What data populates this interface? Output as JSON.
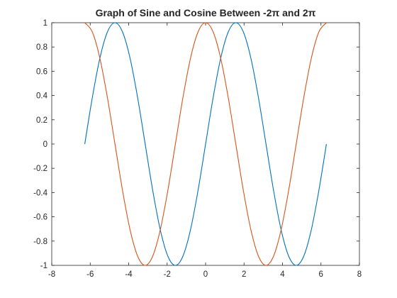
{
  "chart_data": {
    "type": "line",
    "title": "Graph of Sine and Cosine Between -2π and 2π",
    "xlabel": "",
    "ylabel": "",
    "xlim": [
      -8,
      8
    ],
    "ylim": [
      -1,
      1
    ],
    "xticks": [
      -8,
      -6,
      -4,
      -2,
      0,
      2,
      4,
      6,
      8
    ],
    "yticks": [
      -1,
      -0.8,
      -0.6,
      -0.4,
      -0.2,
      0,
      0.2,
      0.4,
      0.6,
      0.8,
      1
    ],
    "xtick_labels": [
      "-8",
      "-6",
      "-4",
      "-2",
      "0",
      "2",
      "4",
      "6",
      "8"
    ],
    "ytick_labels": [
      "-1",
      "-0.8",
      "-0.6",
      "-0.4",
      "-0.2",
      "0",
      "0.2",
      "0.4",
      "0.6",
      "0.8",
      "1"
    ],
    "grid": false,
    "legend": "none",
    "x": [
      -6.2832,
      -5.8905,
      -5.4978,
      -5.1051,
      -4.7124,
      -4.3197,
      -3.927,
      -3.5343,
      -3.1416,
      -2.7489,
      -2.3562,
      -1.9635,
      -1.5708,
      -1.1781,
      -0.7854,
      -0.3927,
      0,
      0.3927,
      0.7854,
      1.1781,
      1.5708,
      1.9635,
      2.3562,
      2.7489,
      3.1416,
      3.5343,
      3.927,
      4.3197,
      4.7124,
      5.1051,
      5.4978,
      5.8905,
      6.2832
    ],
    "series": [
      {
        "color": "#0072BD",
        "values": [
          0,
          0.3827,
          0.7071,
          0.9239,
          1,
          0.9239,
          0.7071,
          0.3827,
          0,
          -0.3827,
          -0.7071,
          -0.9239,
          -1,
          -0.9239,
          -0.7071,
          -0.3827,
          0,
          0.3827,
          0.7071,
          0.9239,
          1,
          0.9239,
          0.7071,
          0.3827,
          0,
          -0.3827,
          -0.7071,
          -0.9239,
          -1,
          -0.9239,
          -0.7071,
          -0.3827,
          0
        ]
      },
      {
        "color": "#D95319",
        "values": [
          1,
          0.9239,
          0.7071,
          0.3827,
          0,
          -0.3827,
          -0.7071,
          -0.9239,
          -1,
          -0.9239,
          -0.7071,
          -0.3827,
          0,
          0.3827,
          0.7071,
          0.9239,
          1,
          0.9239,
          0.7071,
          0.3827,
          0,
          -0.3827,
          -0.7071,
          -0.9239,
          -1,
          -0.9239,
          -0.7071,
          -0.3827,
          0,
          0.3827,
          0.7071,
          0.9239,
          1
        ]
      }
    ]
  }
}
